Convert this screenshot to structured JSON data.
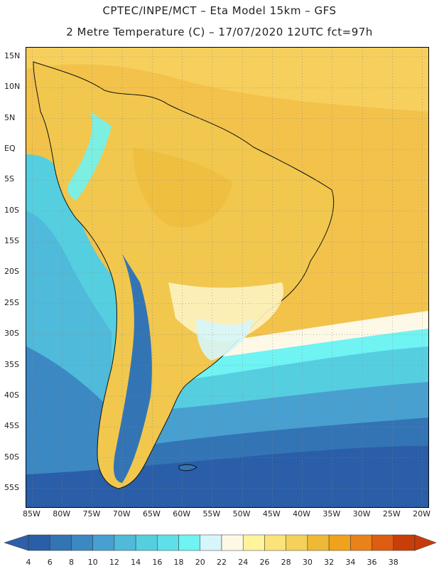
{
  "header": {
    "line1": "CPTEC/INPE/MCT –   Eta Model 15km – GFS",
    "line2": "2 Metre Temperature (C) – 17/07/2020 12UTC fct=97h"
  },
  "map": {
    "lon_range": [
      -86,
      -19
    ],
    "lat_range": [
      -58,
      16.5
    ],
    "lat_ticks": [
      "15N",
      "10N",
      "5N",
      "EQ",
      "5S",
      "10S",
      "15S",
      "20S",
      "25S",
      "30S",
      "35S",
      "40S",
      "45S",
      "50S",
      "55S"
    ],
    "lat_values": [
      15,
      10,
      5,
      0,
      -5,
      -10,
      -15,
      -20,
      -25,
      -30,
      -35,
      -40,
      -45,
      -50,
      -55
    ],
    "lon_ticks": [
      "85W",
      "80W",
      "75W",
      "70W",
      "65W",
      "60W",
      "55W",
      "50W",
      "45W",
      "40W",
      "35W",
      "30W",
      "25W",
      "20W"
    ],
    "lon_values": [
      -85,
      -80,
      -75,
      -70,
      -65,
      -60,
      -55,
      -50,
      -45,
      -40,
      -35,
      -30,
      -25,
      -20
    ],
    "gridlines": true
  },
  "colorbar": {
    "labels": [
      "4",
      "6",
      "8",
      "10",
      "12",
      "14",
      "16",
      "18",
      "20",
      "22",
      "24",
      "26",
      "28",
      "30",
      "32",
      "34",
      "36",
      "38"
    ],
    "colors": [
      "#2a5ea8",
      "#3374b5",
      "#3c88c3",
      "#47a0d0",
      "#4fbad9",
      "#55cfe0",
      "#5ee0ea",
      "#6ff3f3",
      "#d6f6fb",
      "#fdf9e6",
      "#fff49c",
      "#fbe37a",
      "#f5d15a",
      "#eeb935",
      "#f0a21c",
      "#e9821a",
      "#de5d10",
      "#c93e08"
    ],
    "low_color": "#2e5fa8",
    "high_color": "#c43c0b"
  }
}
